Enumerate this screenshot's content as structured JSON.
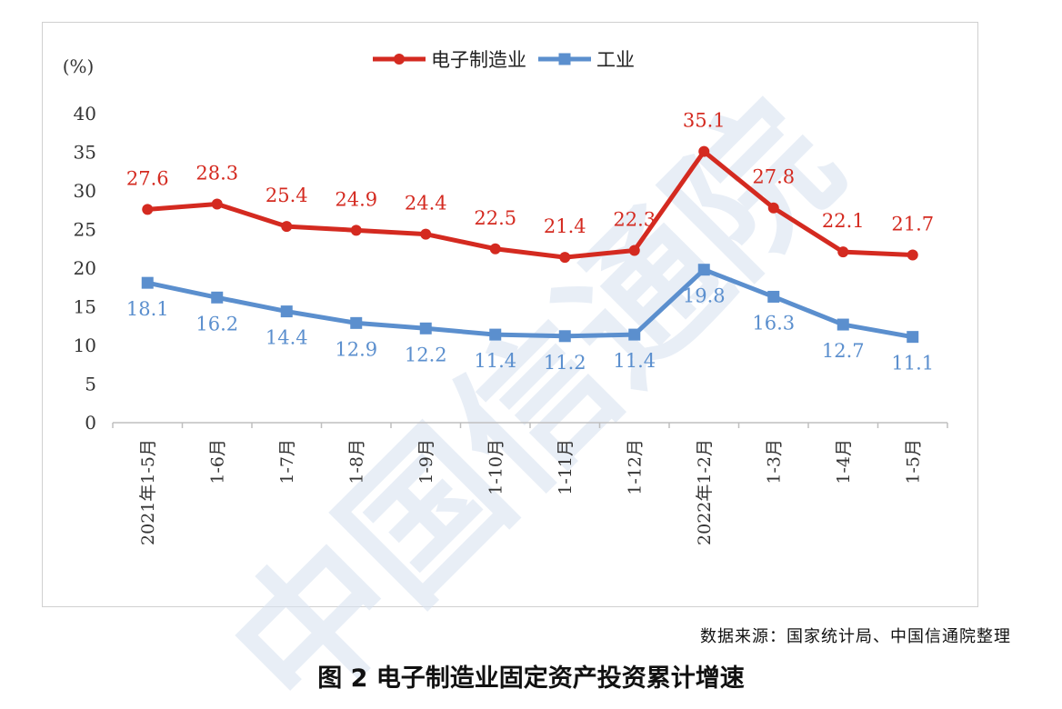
{
  "watermark_text": "中国信通院",
  "source_note": "数据来源：国家统计局、中国信通院整理",
  "figure_caption": "图 2  电子制造业固定资产投资累计增速",
  "chart_data": {
    "type": "line",
    "unit_label": "(%)",
    "categories": [
      "2021年1-5月",
      "1-6月",
      "1-7月",
      "1-8月",
      "1-9月",
      "1-10月",
      "1-11月",
      "1-12月",
      "2022年1-2月",
      "1-3月",
      "1-4月",
      "1-5月"
    ],
    "ylim": [
      0,
      40
    ],
    "yticks": [
      0,
      5,
      10,
      15,
      20,
      25,
      30,
      35,
      40
    ],
    "grid": false,
    "legend_position": "top-center",
    "series": [
      {
        "name": "电子制造业",
        "color": "#d42a20",
        "marker": "circle",
        "values": [
          27.6,
          28.3,
          25.4,
          24.9,
          24.4,
          22.5,
          21.4,
          22.3,
          35.1,
          27.8,
          22.1,
          21.7
        ]
      },
      {
        "name": "工业",
        "color": "#5b8fce",
        "marker": "square",
        "values": [
          18.1,
          16.2,
          14.4,
          12.9,
          12.2,
          11.4,
          11.2,
          11.4,
          19.8,
          16.3,
          12.7,
          11.1
        ]
      }
    ]
  }
}
